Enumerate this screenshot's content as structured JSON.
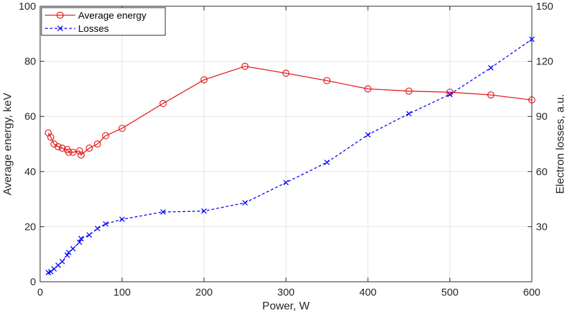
{
  "chart_data": {
    "type": "line",
    "xlabel": "Power, W",
    "ylabel_left": "Average energy, keV",
    "ylabel_right": "Electron losses, a.u.",
    "xlim": [
      0,
      600
    ],
    "ylim_left": [
      0,
      100
    ],
    "ylim_right": [
      0,
      150
    ],
    "xticks": [
      0,
      100,
      200,
      300,
      400,
      500,
      600
    ],
    "yticks_left": [
      0,
      20,
      40,
      60,
      80,
      100
    ],
    "yticks_right": [
      30,
      60,
      90,
      120,
      150
    ],
    "grid": true,
    "legend_location": "top-left",
    "series": [
      {
        "name": "Average energy",
        "axis": "left",
        "color": "#e41a1c",
        "line_style": "solid",
        "marker": "circle",
        "x": [
          10,
          13,
          17,
          22,
          27,
          33,
          35,
          40,
          48,
          50,
          60,
          70,
          80,
          100,
          150,
          200,
          250,
          300,
          350,
          400,
          450,
          500,
          550,
          600
        ],
        "y": [
          54.0,
          52.5,
          50.0,
          49.0,
          48.5,
          48.0,
          47.0,
          47.0,
          47.5,
          46.0,
          48.5,
          50.0,
          53.0,
          55.7,
          64.7,
          73.3,
          78.2,
          75.7,
          73.0,
          70.0,
          69.2,
          68.8,
          67.8,
          66.0
        ]
      },
      {
        "name": "Losses",
        "axis": "right",
        "color": "#0000ff",
        "line_style": "dashed",
        "marker": "x",
        "x": [
          10,
          13,
          17,
          22,
          27,
          33,
          35,
          40,
          48,
          50,
          60,
          70,
          80,
          100,
          150,
          200,
          250,
          300,
          350,
          400,
          450,
          500,
          550,
          600
        ],
        "y": [
          5.0,
          5.5,
          7.0,
          9.0,
          11.0,
          14.5,
          16.0,
          18.0,
          21.5,
          23.5,
          25.5,
          29.0,
          31.5,
          34.0,
          38.0,
          38.5,
          43.0,
          54.0,
          65.0,
          80.0,
          91.5,
          102.0,
          116.5,
          132.0
        ]
      }
    ]
  }
}
